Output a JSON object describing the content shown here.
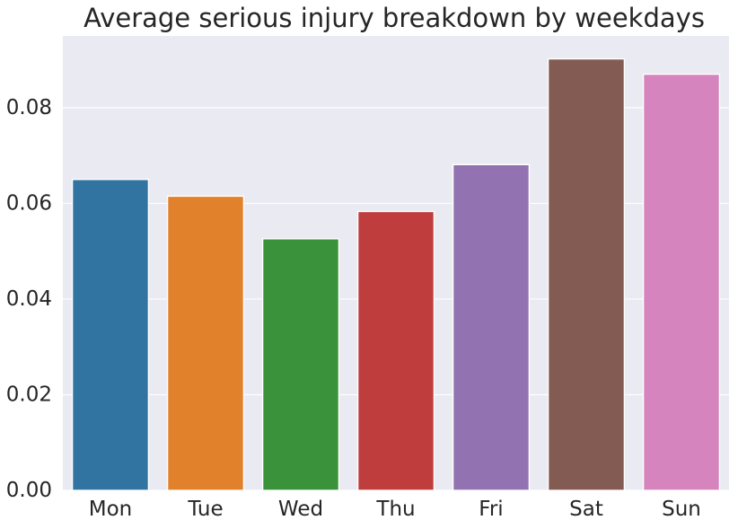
{
  "chart_data": {
    "type": "bar",
    "title": "Average serious injury breakdown by weekdays",
    "xlabel": "",
    "ylabel": "",
    "categories": [
      "Mon",
      "Tue",
      "Wed",
      "Thu",
      "Fri",
      "Sat",
      "Sun"
    ],
    "values": [
      0.065,
      0.0615,
      0.0526,
      0.0583,
      0.0681,
      0.0902,
      0.087
    ],
    "colors": [
      "#3274a1",
      "#e1812c",
      "#3a923a",
      "#c03d3e",
      "#9372b2",
      "#845b53",
      "#d684bd"
    ],
    "ylim": [
      0,
      0.095
    ],
    "yticks": [
      "0.00",
      "0.02",
      "0.04",
      "0.06",
      "0.08"
    ],
    "background": "#eaeaf2",
    "grid": true,
    "legend": "none"
  }
}
